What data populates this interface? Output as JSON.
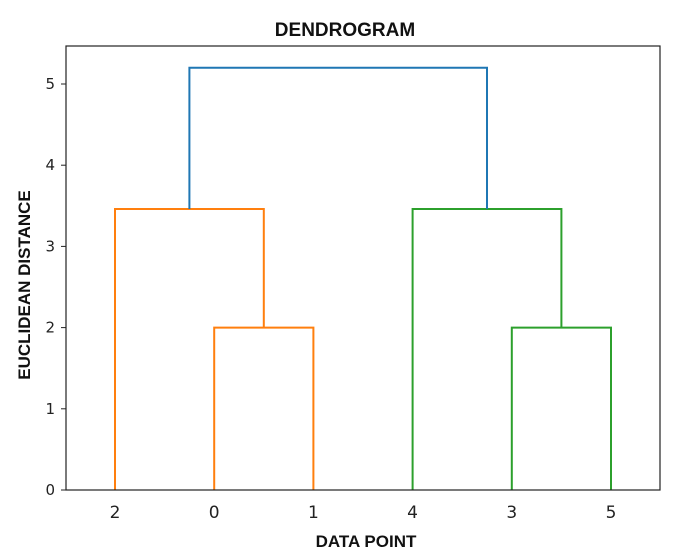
{
  "chart_data": {
    "type": "dendrogram",
    "title": "DENDROGRAM",
    "xlabel": "DATA POINT",
    "ylabel": "EUCLIDEAN DISTANCE",
    "ylim": [
      0,
      5.45
    ],
    "yticks": [
      0,
      1,
      2,
      3,
      4,
      5
    ],
    "leaf_order": [
      "2",
      "0",
      "1",
      "4",
      "3",
      "5"
    ],
    "merges": [
      {
        "left": "0",
        "right": "1",
        "height": 2.0,
        "color": "#ff7f0e",
        "cluster": "orange"
      },
      {
        "left": "2",
        "right": "(0,1)",
        "height": 3.46,
        "color": "#ff7f0e",
        "cluster": "orange"
      },
      {
        "left": "3",
        "right": "5",
        "height": 2.0,
        "color": "#2ca02c",
        "cluster": "green"
      },
      {
        "left": "4",
        "right": "(3,5)",
        "height": 3.46,
        "color": "#2ca02c",
        "cluster": "green"
      },
      {
        "left": "(2,0,1)",
        "right": "(4,3,5)",
        "height": 5.2,
        "color": "#1f77b4",
        "cluster": "above-threshold"
      }
    ],
    "grid": false,
    "legend": null
  },
  "colors": {
    "orange": "#ff7f0e",
    "green": "#2ca02c",
    "blue": "#1f77b4",
    "axis": "#222222"
  }
}
